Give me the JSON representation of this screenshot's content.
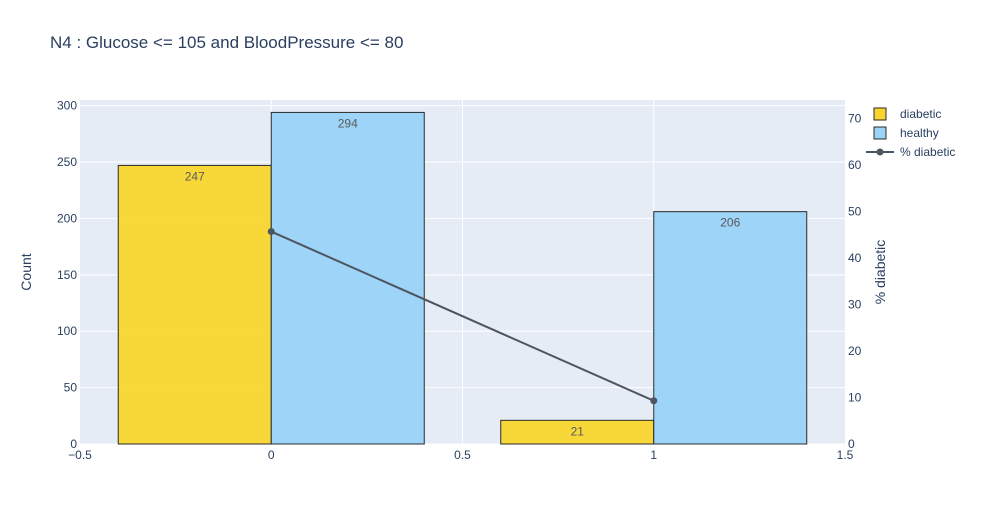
{
  "title": "N4 : Glucose <= 105 and BloodPressure <= 80",
  "chart_data": {
    "type": "bar",
    "title": "N4 : Glucose <= 105 and BloodPressure <= 80",
    "xlim": [
      -0.5,
      1.5
    ],
    "x_ticks": [
      {
        "value": -0.5,
        "label": "−0.5"
      },
      {
        "value": 0,
        "label": "0"
      },
      {
        "value": 0.5,
        "label": "0.5"
      },
      {
        "value": 1,
        "label": "1"
      },
      {
        "value": 1.5,
        "label": "1.5"
      }
    ],
    "x": [
      0,
      1
    ],
    "ylabel": "Count",
    "ylim": [
      0,
      305
    ],
    "y_ticks": [
      0,
      50,
      100,
      150,
      200,
      250,
      300
    ],
    "y2label": "% diabetic",
    "y2lim": [
      0,
      74
    ],
    "y2_ticks": [
      0,
      10,
      20,
      30,
      40,
      50,
      60,
      70
    ],
    "grid": true,
    "legend_position": "top-right",
    "series": [
      {
        "name": "diabetic",
        "type": "bar",
        "axis": "left",
        "values": [
          247,
          21
        ],
        "labels": [
          "247",
          "21"
        ],
        "color": "#f9d62e"
      },
      {
        "name": "healthy",
        "type": "bar",
        "axis": "left",
        "values": [
          294,
          206
        ],
        "labels": [
          "294",
          "206"
        ],
        "color": "#99d3f8"
      },
      {
        "name": "% diabetic",
        "type": "line",
        "axis": "right",
        "values": [
          45.7,
          9.3
        ],
        "color": "#4d5561"
      }
    ]
  }
}
